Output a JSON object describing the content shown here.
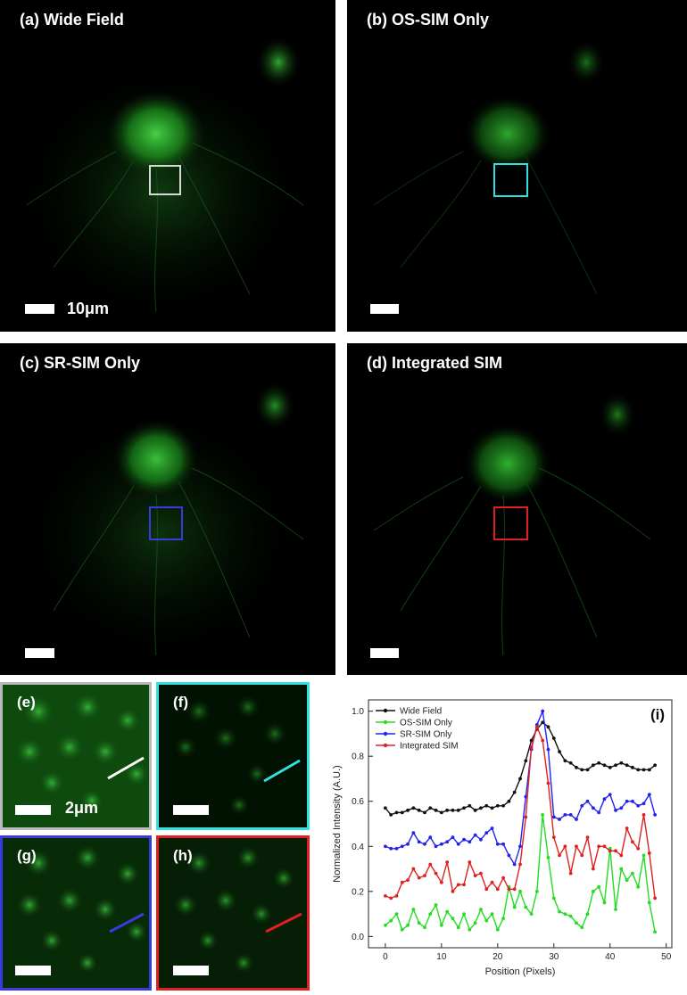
{
  "panels": {
    "a": {
      "label": "(a) Wide Field",
      "scale_label": "10μm",
      "box_color": "#d8d8d8"
    },
    "b": {
      "label": "(b) OS-SIM Only",
      "box_color": "#33e0e0"
    },
    "c": {
      "label": "(c) SR-SIM Only",
      "box_color": "#3a3ae0"
    },
    "d": {
      "label": "(d) Integrated SIM",
      "box_color": "#e02020"
    }
  },
  "insets": {
    "e": {
      "label": "(e)",
      "scale_label": "2μm",
      "border_color": "#b9b9b9",
      "line_color": "#ffffff"
    },
    "f": {
      "label": "(f)",
      "border_color": "#33e0e0",
      "line_color": "#33e0e0"
    },
    "g": {
      "label": "(g)",
      "border_color": "#3a3ae0",
      "line_color": "#3a3ae0"
    },
    "h": {
      "label": "(h)",
      "border_color": "#e02020",
      "line_color": "#e02020"
    }
  },
  "chart_data": {
    "type": "line",
    "panel_label": "(i)",
    "xlabel": "Position (Pixels)",
    "ylabel": "Normalized Intensity (A.U.)",
    "xlim": [
      -3,
      51
    ],
    "ylim": [
      -0.05,
      1.05
    ],
    "xticks": [
      0,
      10,
      20,
      30,
      40,
      50
    ],
    "yticks": [
      0.0,
      0.2,
      0.4,
      0.6,
      0.8,
      1.0
    ],
    "legend_position": "top-left",
    "grid": false,
    "x": [
      0,
      1,
      2,
      3,
      4,
      5,
      6,
      7,
      8,
      9,
      10,
      11,
      12,
      13,
      14,
      15,
      16,
      17,
      18,
      19,
      20,
      21,
      22,
      23,
      24,
      25,
      26,
      27,
      28,
      29,
      30,
      31,
      32,
      33,
      34,
      35,
      36,
      37,
      38,
      39,
      40,
      41,
      42,
      43,
      44,
      45,
      46,
      47,
      48
    ],
    "series": [
      {
        "name": "Wide Field",
        "color": "#111111",
        "values": [
          0.57,
          0.54,
          0.55,
          0.55,
          0.56,
          0.57,
          0.56,
          0.55,
          0.57,
          0.56,
          0.55,
          0.56,
          0.56,
          0.56,
          0.57,
          0.58,
          0.56,
          0.57,
          0.58,
          0.57,
          0.58,
          0.58,
          0.6,
          0.64,
          0.7,
          0.78,
          0.87,
          0.92,
          0.95,
          0.93,
          0.88,
          0.82,
          0.78,
          0.77,
          0.75,
          0.74,
          0.74,
          0.76,
          0.77,
          0.76,
          0.75,
          0.76,
          0.77,
          0.76,
          0.75,
          0.74,
          0.74,
          0.74,
          0.76
        ]
      },
      {
        "name": "OS-SIM Only",
        "color": "#22dd22",
        "values": [
          0.05,
          0.07,
          0.1,
          0.03,
          0.05,
          0.12,
          0.06,
          0.04,
          0.1,
          0.14,
          0.05,
          0.11,
          0.08,
          0.04,
          0.1,
          0.03,
          0.06,
          0.12,
          0.07,
          0.1,
          0.03,
          0.08,
          0.22,
          0.13,
          0.2,
          0.13,
          0.1,
          0.2,
          0.54,
          0.35,
          0.17,
          0.11,
          0.1,
          0.09,
          0.06,
          0.04,
          0.1,
          0.2,
          0.22,
          0.15,
          0.39,
          0.12,
          0.3,
          0.25,
          0.28,
          0.22,
          0.36,
          0.15,
          0.02
        ]
      },
      {
        "name": "SR-SIM Only",
        "color": "#2222ee",
        "values": [
          0.4,
          0.39,
          0.39,
          0.4,
          0.41,
          0.46,
          0.42,
          0.41,
          0.44,
          0.4,
          0.41,
          0.42,
          0.44,
          0.41,
          0.43,
          0.42,
          0.45,
          0.43,
          0.46,
          0.48,
          0.41,
          0.41,
          0.36,
          0.32,
          0.4,
          0.62,
          0.83,
          0.94,
          1.0,
          0.83,
          0.53,
          0.52,
          0.54,
          0.54,
          0.52,
          0.58,
          0.6,
          0.57,
          0.55,
          0.61,
          0.63,
          0.56,
          0.57,
          0.6,
          0.6,
          0.58,
          0.59,
          0.63,
          0.54
        ]
      },
      {
        "name": "Integrated SIM",
        "color": "#dd2222",
        "values": [
          0.18,
          0.17,
          0.18,
          0.24,
          0.25,
          0.3,
          0.26,
          0.27,
          0.32,
          0.28,
          0.24,
          0.33,
          0.2,
          0.23,
          0.23,
          0.33,
          0.27,
          0.28,
          0.21,
          0.24,
          0.21,
          0.26,
          0.21,
          0.21,
          0.32,
          0.53,
          0.84,
          0.93,
          0.87,
          0.68,
          0.44,
          0.36,
          0.4,
          0.28,
          0.4,
          0.36,
          0.44,
          0.3,
          0.4,
          0.4,
          0.38,
          0.38,
          0.36,
          0.48,
          0.42,
          0.39,
          0.54,
          0.37,
          0.17
        ]
      }
    ]
  }
}
